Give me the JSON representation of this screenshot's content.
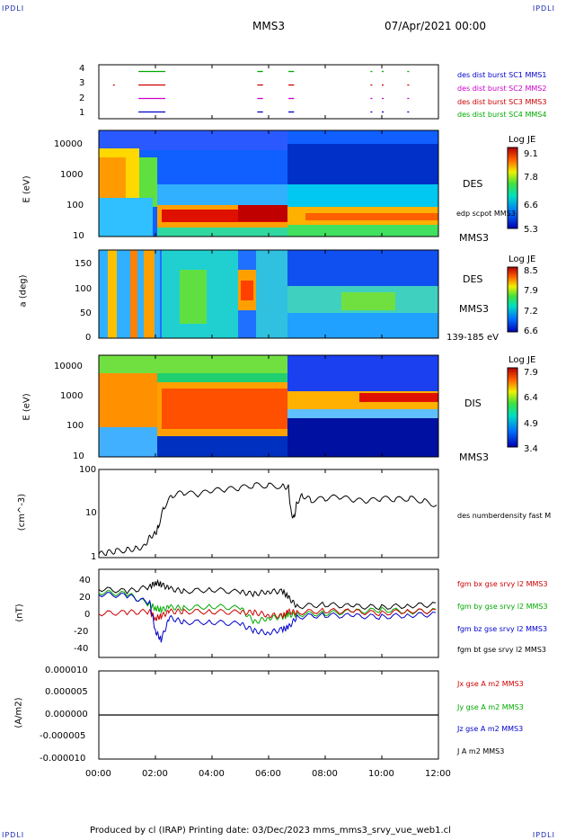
{
  "header": {
    "corner_label": "IPDLI",
    "spacecraft": "MMS3",
    "datetime": "07/Apr/2021 00:00"
  },
  "footer": {
    "text": "Produced by cl (IRAP)   Printing date: 03/Dec/2023   mms_mms3_srvy_vue_web1.cl"
  },
  "time_axis": [
    "00:00",
    "02:00",
    "04:00",
    "06:00",
    "08:00",
    "10:00",
    "12:00"
  ],
  "panels": {
    "burst": {
      "yticks": [
        "4",
        "3",
        "2",
        "1"
      ],
      "legend": [
        {
          "text": "des dist burst SC1 MMS1",
          "color": "#0000cc"
        },
        {
          "text": "des dist burst SC2 MMS2",
          "color": "#cc00cc"
        },
        {
          "text": "des dist burst SC3 MMS3",
          "color": "#cc0000"
        },
        {
          "text": "des dist burst SC4 MMS4",
          "color": "#00aa00"
        }
      ]
    },
    "des_energy": {
      "ylabel": "E (eV)",
      "yticks": [
        "10000",
        "1000",
        "100",
        "10"
      ],
      "title": "DES",
      "side": "MMS3",
      "overlay": "edp scpot MMS3",
      "cbar_title": "Log JE",
      "cbar_ticks": [
        "9.1",
        "7.8",
        "6.6",
        "5.3"
      ]
    },
    "des_pitch": {
      "ylabel": "a (deg)",
      "yticks": [
        "150",
        "100",
        "50",
        "0"
      ],
      "title": "DES",
      "side": "MMS3",
      "range": "139-185 eV",
      "cbar_title": "Log JE",
      "cbar_ticks": [
        "8.5",
        "7.9",
        "7.2",
        "6.6"
      ]
    },
    "dis_energy": {
      "ylabel": "E (eV)",
      "yticks": [
        "10000",
        "1000",
        "100",
        "10"
      ],
      "title": "DIS",
      "side": "MMS3",
      "cbar_title": "Log JE",
      "cbar_ticks": [
        "7.9",
        "6.4",
        "4.9",
        "3.4"
      ]
    },
    "density": {
      "ylabel": "(cm^-3)",
      "yticks": [
        "100",
        "10",
        "1"
      ],
      "legend": "des numberdensity fast M"
    },
    "bfield": {
      "ylabel": "(nT)",
      "yticks": [
        "40",
        "20",
        "0",
        "-20",
        "-40"
      ],
      "legend": [
        {
          "text": "fgm bx gse srvy l2 MMS3",
          "color": "#cc0000"
        },
        {
          "text": "fgm by gse srvy l2 MMS3",
          "color": "#00aa00"
        },
        {
          "text": "fgm bz gse srvy l2 MMS3",
          "color": "#0000cc"
        },
        {
          "text": "fgm bt gse srvy l2 MMS3",
          "color": "#000000"
        }
      ]
    },
    "current": {
      "ylabel": "(A/m2)",
      "yticks": [
        "0.000010",
        "0.000005",
        "0.000000",
        "-0.000005",
        "-0.000010"
      ],
      "legend": [
        {
          "text": "Jx gse A m2 MMS3",
          "color": "#cc0000"
        },
        {
          "text": "Jy gse A m2 MMS3",
          "color": "#00aa00"
        },
        {
          "text": "Jz gse A m2 MMS3",
          "color": "#0000cc"
        },
        {
          "text": "J A m2 MMS3",
          "color": "#000000"
        }
      ]
    }
  },
  "chart_data": [
    {
      "type": "line",
      "name": "burst intervals",
      "series": [
        {
          "name": "MMS1",
          "y": 1,
          "intervals": [
            [
              1.4,
              2.35
            ],
            [
              5.6,
              5.8
            ],
            [
              6.7,
              6.9
            ],
            [
              9.6,
              9.65
            ],
            [
              10.0,
              10.05
            ],
            [
              10.9,
              10.95
            ]
          ]
        },
        {
          "name": "MMS2",
          "y": 2,
          "intervals": [
            [
              1.4,
              2.35
            ],
            [
              5.6,
              5.8
            ],
            [
              6.7,
              6.9
            ],
            [
              9.6,
              9.65
            ],
            [
              10.0,
              10.05
            ],
            [
              10.9,
              10.95
            ]
          ]
        },
        {
          "name": "MMS3",
          "y": 3,
          "intervals": [
            [
              0.5,
              0.52
            ],
            [
              1.4,
              2.35
            ],
            [
              5.6,
              5.8
            ],
            [
              6.7,
              6.9
            ],
            [
              9.6,
              9.65
            ],
            [
              10.0,
              10.05
            ],
            [
              10.9,
              10.95
            ]
          ]
        },
        {
          "name": "MMS4",
          "y": 4,
          "intervals": [
            [
              1.4,
              2.35
            ],
            [
              5.6,
              5.8
            ],
            [
              6.7,
              6.9
            ],
            [
              9.6,
              9.65
            ],
            [
              10.0,
              10.05
            ],
            [
              10.9,
              10.95
            ]
          ]
        }
      ],
      "ylim": [
        0.5,
        4.5
      ]
    },
    {
      "type": "heatmap",
      "name": "DES energy spectrogram",
      "colorbar": [
        5.3,
        9.1
      ],
      "ylim": [
        10,
        30000
      ],
      "log_y": true,
      "dominant_energy_eV": [
        [
          0,
          1500
        ],
        [
          2,
          1500
        ],
        [
          2.1,
          60
        ],
        [
          6.7,
          60
        ],
        [
          6.8,
          50
        ],
        [
          12,
          50
        ]
      ]
    },
    {
      "type": "heatmap",
      "name": "DES pitch angle",
      "colorbar": [
        6.6,
        8.5
      ],
      "ylim": [
        0,
        180
      ]
    },
    {
      "type": "heatmap",
      "name": "DIS energy spectrogram",
      "colorbar": [
        3.4,
        7.9
      ],
      "ylim": [
        10,
        30000
      ],
      "log_y": true,
      "dominant_energy_eV": [
        [
          0,
          800
        ],
        [
          2,
          800
        ],
        [
          2.1,
          450
        ],
        [
          6.6,
          450
        ],
        [
          6.7,
          700
        ],
        [
          12,
          800
        ]
      ]
    },
    {
      "type": "line",
      "name": "density",
      "log_y": true,
      "ylim": [
        1,
        100
      ],
      "x": [
        0,
        0.3,
        0.6,
        1,
        1.3,
        1.6,
        1.8,
        2,
        2.1,
        2.3,
        2.6,
        3,
        3.5,
        4,
        4.5,
        5,
        5.5,
        6,
        6.5,
        6.7,
        6.8,
        6.9,
        7,
        7.2,
        7.5,
        8,
        8.5,
        9,
        9.5,
        10,
        10.5,
        11,
        11.5,
        12
      ],
      "y": [
        1.2,
        1.3,
        1.4,
        1.5,
        1.6,
        1.8,
        3,
        3.5,
        5,
        14,
        26,
        30,
        27,
        33,
        35,
        38,
        44,
        43,
        41,
        40,
        10,
        8,
        18,
        26,
        20,
        22,
        24,
        20,
        19,
        22,
        21,
        22,
        19,
        15
      ]
    },
    {
      "type": "line",
      "name": "magnetic field",
      "ylim": [
        -50,
        50
      ],
      "x": [
        0,
        1,
        1.8,
        2,
        2.2,
        2.5,
        3,
        4,
        5,
        5.5,
        6,
        6.5,
        6.7,
        7,
        8,
        9,
        10,
        11,
        12
      ],
      "series": [
        {
          "name": "bx",
          "values": [
            0,
            1,
            2,
            -6,
            -3,
            2,
            2,
            2,
            1,
            1,
            -2,
            -3,
            2,
            1,
            3,
            2,
            0,
            3,
            2
          ]
        },
        {
          "name": "by",
          "values": [
            24,
            22,
            10,
            6,
            4,
            7,
            6,
            8,
            6,
            -10,
            -5,
            -4,
            -2,
            -1,
            0,
            2,
            4,
            2,
            3
          ]
        },
        {
          "name": "bz",
          "values": [
            22,
            20,
            12,
            -20,
            -30,
            -5,
            -10,
            -10,
            -12,
            -20,
            -22,
            -18,
            -16,
            -4,
            -2,
            -3,
            -4,
            -2,
            -1
          ]
        },
        {
          "name": "bt",
          "values": [
            28,
            25,
            30,
            35,
            33,
            28,
            25,
            27,
            24,
            22,
            25,
            25,
            18,
            8,
            10,
            8,
            7,
            9,
            10
          ]
        }
      ]
    },
    {
      "type": "line",
      "name": "current density",
      "ylim": [
        -1e-05,
        1e-05
      ],
      "x": [
        0,
        12
      ],
      "series": [
        {
          "name": "J",
          "values": [
            0,
            0
          ]
        }
      ]
    }
  ]
}
